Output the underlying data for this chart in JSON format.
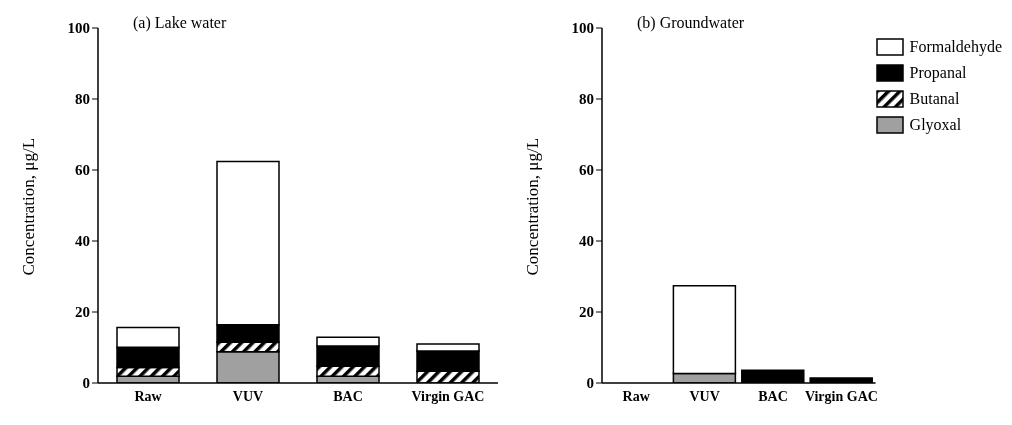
{
  "chart_data": [
    {
      "type": "bar",
      "title": "(a) Lake water",
      "ylabel": "Concentration, μg/L",
      "categories": [
        "Raw",
        "VUV",
        "BAC",
        "Virgin GAC"
      ],
      "stacked": true,
      "ylim": [
        0,
        100
      ],
      "yticks": [
        0,
        20,
        40,
        60,
        80,
        100
      ],
      "series": [
        {
          "color": "#a0a0a0",
          "values": [
            1.9,
            8.8,
            1.9,
            0
          ]
        },
        {
          "color": "#000000",
          "values": [
            2.5,
            2.7,
            2.8,
            3.3
          ]
        },
        {
          "color": "#000000",
          "values": [
            5.7,
            4.9,
            5.7,
            5.7
          ]
        },
        {
          "color": "#ffffff",
          "values": [
            5.5,
            46,
            2.5,
            2
          ]
        }
      ]
    },
    {
      "type": "bar",
      "title": "(b) Groundwater",
      "ylabel": "Concentration, μg/L",
      "categories": [
        "Raw",
        "VUV",
        "BAC",
        "Virgin GAC"
      ],
      "stacked": true,
      "ylim": [
        0,
        100
      ],
      "yticks": [
        0,
        20,
        40,
        60,
        80,
        100
      ],
      "legend": "top right",
      "series": [
        {
          "name": "Glyoxal",
          "color": "#a0a0a0",
          "values": [
            0,
            2.7,
            0,
            0
          ]
        },
        {
          "name": "Butanal",
          "color": "#000000",
          "values": [
            0,
            0,
            0,
            0
          ]
        },
        {
          "name": "Propanal",
          "color": "#000000",
          "values": [
            0,
            0,
            3.6,
            1.4
          ]
        },
        {
          "name": "Formaldehyde",
          "color": "#ffffff",
          "values": [
            0,
            24.7,
            0,
            0
          ]
        }
      ]
    }
  ]
}
